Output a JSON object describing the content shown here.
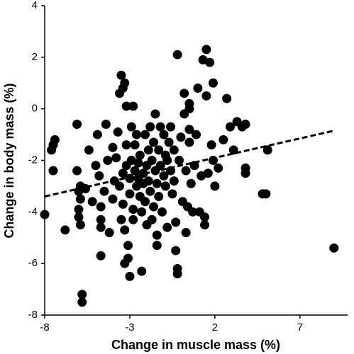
{
  "chart_data": {
    "type": "scatter",
    "xlabel": "Change in muscle mass (%)",
    "ylabel": "Change in body mass (%)",
    "color": "#000000",
    "x": [
      -8,
      -7.6,
      -7.5,
      -7.4,
      -7.5,
      -6.8,
      -6.1,
      -6.1,
      -6.0,
      -5.9,
      -5.9,
      -6.0,
      -6.0,
      -5.9,
      -5.8,
      -5.8,
      -5.6,
      -5.4,
      -5.2,
      -5.0,
      -4.9,
      -4.8,
      -4.7,
      -4.7,
      -4.7,
      -4.7,
      -4.5,
      -4.4,
      -4.3,
      -4.2,
      -4.0,
      -4.0,
      -3.9,
      -3.8,
      -3.7,
      -3.6,
      -3.6,
      -3.5,
      -3.5,
      -3.4,
      -3.4,
      -3.4,
      -3.3,
      -3.3,
      -3.3,
      -3.2,
      -3.2,
      -3.2,
      -3.1,
      -3.1,
      -3.0,
      -3.0,
      -3.0,
      -2.9,
      -2.9,
      -2.8,
      -2.8,
      -2.8,
      -2.7,
      -2.7,
      -2.6,
      -2.6,
      -2.5,
      -2.5,
      -2.4,
      -2.4,
      -2.3,
      -2.3,
      -2.2,
      -2.2,
      -2.1,
      -2.1,
      -2.0,
      -2.0,
      -1.9,
      -1.9,
      -1.8,
      -1.8,
      -1.7,
      -1.7,
      -1.6,
      -1.6,
      -1.5,
      -1.5,
      -1.4,
      -1.4,
      -1.4,
      -1.3,
      -1.3,
      -1.2,
      -1.2,
      -1.1,
      -1.0,
      -1.0,
      -0.9,
      -0.9,
      -0.8,
      -0.8,
      -0.7,
      -0.6,
      -0.6,
      -0.5,
      -0.4,
      -0.4,
      -0.3,
      -0.3,
      -0.2,
      -0.2,
      -0.2,
      -0.1,
      0,
      0.1,
      0.2,
      0.2,
      0.3,
      0.3,
      0.4,
      0.5,
      0.5,
      0.6,
      0.7,
      0.8,
      0.9,
      1.0,
      1.1,
      1.2,
      1.3,
      1.4,
      1.4,
      1.5,
      1.5,
      1.6,
      1.7,
      1.8,
      1.9,
      1.9,
      2.0,
      2.2,
      2.5,
      2.7,
      2.9,
      3.1,
      3.3,
      3.6,
      3.8,
      3.8,
      3.8,
      4.8,
      5.0,
      5.1,
      9.0,
      0.5,
      0.5
    ],
    "y": [
      -4.1,
      -1.6,
      -1.4,
      -1.2,
      -2.4,
      -4.7,
      -0.6,
      -2.4,
      -3.2,
      -3.0,
      -3.5,
      -3.9,
      -4.2,
      -4.5,
      -7.2,
      -7.5,
      -3.1,
      -1.6,
      -3.6,
      -2.2,
      -1.0,
      -2.6,
      -3.8,
      -4.3,
      -4.6,
      -5.7,
      -3.2,
      -0.6,
      -2.0,
      -4.8,
      -1.5,
      -3.5,
      -2.8,
      -1.9,
      -0.9,
      -3.0,
      0.6,
      1.3,
      -4.3,
      0.8,
      -2.5,
      -3.7,
      -4.7,
      -6.0,
      1.0,
      -1.4,
      -2.2,
      0.1,
      -5.3,
      -5.8,
      -6.5,
      -2.7,
      -3.3,
      -0.7,
      -2.0,
      -3.9,
      -4.3,
      0.1,
      -1.4,
      -2.4,
      -1.0,
      -3.0,
      -2.1,
      -2.7,
      -1.8,
      -3.4,
      -4.0,
      -6.3,
      -2.5,
      -2.9,
      -1.0,
      -3.6,
      -2.2,
      -4.5,
      -1.6,
      -2.8,
      -3.2,
      -0.7,
      -2.0,
      -4.3,
      -1.3,
      -3.8,
      -2.4,
      -0.2,
      -2.9,
      -4.9,
      -5.3,
      -1.6,
      -3.4,
      -0.7,
      -2.2,
      -4.0,
      -1.0,
      -2.6,
      -3.0,
      -1.8,
      -4.6,
      -2.0,
      -1.3,
      -2.4,
      -0.7,
      -3.3,
      -1.6,
      -2.8,
      -4.4,
      -5.5,
      -6.2,
      -6.4,
      2.1,
      -2.0,
      -1.1,
      -3.6,
      0.6,
      -0.2,
      -2.4,
      -4.8,
      -3.8,
      -0.8,
      -1.3,
      -2.9,
      -4.0,
      -2.2,
      -1.0,
      0.8,
      -4.0,
      -2.6,
      1.9,
      -4.2,
      -4.5,
      0.5,
      2.3,
      -2.5,
      1.8,
      -1.4,
      1.0,
      -2.0,
      -3.0,
      -2.3,
      -1.2,
      0.4,
      -0.7,
      -1.6,
      -0.5,
      -0.7,
      -0.6,
      -2.3,
      -2.5,
      -3.3,
      -3.3,
      -1.6,
      -5.4,
      0.2,
      0
    ],
    "trend": {
      "x": [
        -8,
        9
      ],
      "y": [
        -3.4,
        -0.85
      ]
    },
    "xlim": [
      -8,
      9.8
    ],
    "ylim": [
      -8,
      4
    ],
    "xticks": [
      -8,
      -3,
      2,
      7
    ],
    "yticks": [
      -8,
      -6,
      -4,
      -2,
      0,
      2,
      4
    ],
    "grid": false
  }
}
